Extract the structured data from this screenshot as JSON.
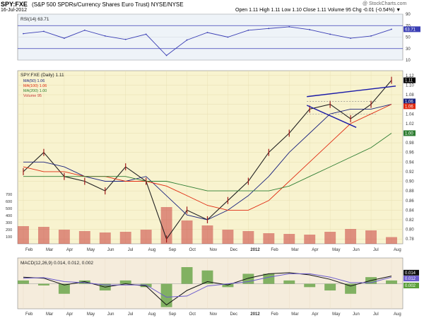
{
  "header": {
    "symbol": "SPY:FXE",
    "description": "(S&P 500 SPDRs/Currency Shares Euro Trust) NYSE/NYSE",
    "copyright": "@ StockCharts.com",
    "date": "16-Jul-2012",
    "quote": "Open 1.11  High 1.11  Low 1.10  Close 1.11  Volume 95  Chg -0.01 (-0.54%) ▼"
  },
  "colors": {
    "rsi_bg": "#eef3f8",
    "price_bg": "#f8f3cf",
    "macd_bg": "#f5ecdc",
    "ma50": "#1a237e",
    "ma100": "#e02a10",
    "ma200": "#2e7d32",
    "volume": "#c83c3c",
    "rsi_line": "#3b3fb5",
    "trendline": "#1a1aa8"
  },
  "chart_data": [
    {
      "type": "line",
      "panel": "rsi",
      "legend": "RSI(14) 63.71",
      "last_value": 63.71,
      "ylim": [
        10,
        90
      ],
      "reference_lines": [
        70,
        30
      ],
      "y_ticks": [
        "90",
        "70",
        "50",
        "30",
        "10"
      ],
      "x": [
        "Jan-11",
        "Feb-11",
        "Mar-11",
        "Apr-11",
        "May-11",
        "Jun-11",
        "Jul-11",
        "Aug-11",
        "Sep-11",
        "Oct-11",
        "Nov-11",
        "Dec-11",
        "Jan-12",
        "Feb-12",
        "Mar-12",
        "Apr-12",
        "May-12",
        "Jun-12",
        "Jul-12"
      ],
      "values": [
        56,
        60,
        48,
        62,
        52,
        46,
        55,
        18,
        45,
        58,
        50,
        62,
        65,
        68,
        63,
        55,
        48,
        52,
        63.71
      ]
    },
    {
      "type": "line",
      "panel": "price",
      "title": "SPY:FXE (Daily) 1.11",
      "legend": [
        "MA(50) 1.06",
        "MA(100) 1.06",
        "MA(200) 1.00",
        "Volume 95"
      ],
      "ylim": [
        0.77,
        1.13
      ],
      "y_ticks": [
        "1.12",
        "1.10",
        "1.08",
        "1.06",
        "1.04",
        "1.02",
        "1.00",
        "0.98",
        "0.96",
        "0.94",
        "0.92",
        "0.90",
        "0.88",
        "0.86",
        "0.84",
        "0.82",
        "0.80",
        "0.78"
      ],
      "badges": [
        "1.11",
        "1.06",
        "1.06",
        "1.00"
      ],
      "x_labels": [
        "Feb",
        "Mar",
        "Apr",
        "May",
        "Jun",
        "Jul",
        "Aug",
        "Sep",
        "Oct",
        "Nov",
        "Dec",
        "2012",
        "Feb",
        "Mar",
        "Apr",
        "May",
        "Jun",
        "Jul",
        "Aug"
      ],
      "x": [
        "Jan-11",
        "Feb-11",
        "Mar-11",
        "Apr-11",
        "May-11",
        "Jun-11",
        "Jul-11",
        "Aug-11",
        "Sep-11",
        "Oct-11",
        "Nov-11",
        "Dec-11",
        "Jan-12",
        "Feb-12",
        "Mar-12",
        "Apr-12",
        "May-12",
        "Jun-12",
        "Jul-12"
      ],
      "series": [
        {
          "name": "SPY:FXE (Daily)",
          "values": [
            0.92,
            0.96,
            0.91,
            0.9,
            0.88,
            0.93,
            0.9,
            0.78,
            0.84,
            0.82,
            0.86,
            0.9,
            0.96,
            1.0,
            1.05,
            1.06,
            1.03,
            1.06,
            1.11
          ]
        },
        {
          "name": "MA(50)",
          "values": [
            0.94,
            0.94,
            0.93,
            0.91,
            0.9,
            0.9,
            0.91,
            0.87,
            0.83,
            0.82,
            0.84,
            0.87,
            0.91,
            0.96,
            1.0,
            1.04,
            1.05,
            1.05,
            1.06
          ]
        },
        {
          "name": "MA(100)",
          "values": [
            0.93,
            0.92,
            0.92,
            0.91,
            0.91,
            0.9,
            0.9,
            0.89,
            0.87,
            0.85,
            0.84,
            0.84,
            0.86,
            0.9,
            0.94,
            0.98,
            1.02,
            1.04,
            1.06
          ]
        },
        {
          "name": "MA(200)",
          "values": [
            0.91,
            0.91,
            0.91,
            0.91,
            0.91,
            0.91,
            0.9,
            0.9,
            0.89,
            0.88,
            0.88,
            0.88,
            0.88,
            0.89,
            0.91,
            0.93,
            0.95,
            0.97,
            1.0
          ]
        }
      ]
    },
    {
      "type": "bar",
      "panel": "volume",
      "legend": "Volume 95",
      "y_ticks": [
        "700",
        "600",
        "500",
        "400",
        "300",
        "200",
        "100"
      ],
      "ylim": [
        0,
        800
      ],
      "x": [
        "Jan-11",
        "Feb-11",
        "Mar-11",
        "Apr-11",
        "May-11",
        "Jun-11",
        "Jul-11",
        "Aug-11",
        "Sep-11",
        "Oct-11",
        "Nov-11",
        "Dec-11",
        "Jan-12",
        "Feb-12",
        "Mar-12",
        "Apr-12",
        "May-12",
        "Jun-12",
        "Jul-12"
      ],
      "values": [
        250,
        240,
        200,
        180,
        160,
        170,
        200,
        520,
        330,
        260,
        200,
        180,
        150,
        140,
        130,
        170,
        210,
        190,
        95
      ]
    },
    {
      "type": "line",
      "panel": "macd",
      "legend": "MACD(12,26,9) 0.014, 0.012, 0.002",
      "badges": [
        "0.014",
        "0.012",
        "0.002"
      ],
      "x_labels": [
        "Feb",
        "Mar",
        "Apr",
        "May",
        "Jun",
        "Jul",
        "Aug",
        "Sep",
        "Oct",
        "Nov",
        "Dec",
        "2012",
        "Feb",
        "Mar",
        "Apr",
        "May",
        "Jun",
        "Jul",
        "Aug"
      ],
      "x": [
        "Jan-11",
        "Feb-11",
        "Mar-11",
        "Apr-11",
        "May-11",
        "Jun-11",
        "Jul-11",
        "Aug-11",
        "Sep-11",
        "Oct-11",
        "Nov-11",
        "Dec-11",
        "Jan-12",
        "Feb-12",
        "Mar-12",
        "Apr-12",
        "May-12",
        "Jun-12",
        "Jul-12"
      ],
      "ylim": [
        -0.045,
        0.03
      ],
      "series": [
        {
          "name": "MACD",
          "values": [
            0.012,
            0.01,
            -0.002,
            0.004,
            -0.006,
            0.0,
            -0.004,
            -0.038,
            -0.012,
            0.004,
            -0.002,
            0.01,
            0.018,
            0.02,
            0.016,
            0.008,
            -0.004,
            0.006,
            0.014
          ]
        },
        {
          "name": "Signal",
          "values": [
            0.01,
            0.011,
            0.004,
            0.002,
            -0.002,
            -0.002,
            -0.002,
            -0.024,
            -0.022,
            -0.004,
            0.0,
            0.004,
            0.012,
            0.018,
            0.018,
            0.012,
            0.002,
            0.002,
            0.012
          ]
        },
        {
          "name": "Histogram",
          "values": [
            0.002,
            -0.001,
            -0.006,
            0.002,
            -0.004,
            0.002,
            -0.002,
            -0.014,
            0.01,
            0.008,
            -0.002,
            0.006,
            0.006,
            0.002,
            -0.002,
            -0.004,
            -0.006,
            0.004,
            0.002
          ]
        }
      ]
    }
  ]
}
